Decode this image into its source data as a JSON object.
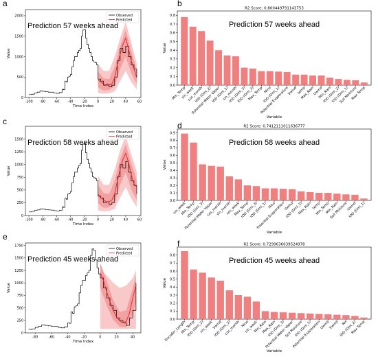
{
  "panels": {
    "a": "a",
    "b": "b",
    "c": "c",
    "d": "d",
    "e": "e",
    "f": "f"
  },
  "colors": {
    "observed": "#000000",
    "predicted": "#e8202a",
    "band_outer": "#f9c9c9",
    "band_inner": "#f2a0a0",
    "bar": "#f08080"
  },
  "chart_data": [
    {
      "id": "a",
      "type": "line",
      "title": "",
      "annotation": "Prediction 57 weeks ahead",
      "xlabel": "Time Index",
      "ylabel": "Value",
      "xlim": [
        -105,
        62
      ],
      "ylim": [
        0,
        2150
      ],
      "xticks": [
        "-100",
        "-80",
        "-60",
        "-40",
        "-20",
        "0",
        "20",
        "40",
        "60"
      ],
      "yticks": [
        "0",
        "500",
        "1000",
        "1500",
        "2000"
      ],
      "legend": [
        "Observed",
        "Predicted"
      ],
      "legend_position": "top-right",
      "observed": {
        "x": [
          -100,
          -96,
          -92,
          -88,
          -84,
          -80,
          -76,
          -72,
          -68,
          -64,
          -60,
          -56,
          -52,
          -50,
          -48,
          -46,
          -44,
          -42,
          -40,
          -38,
          -36,
          -34,
          -32,
          -30,
          -28,
          -26,
          -24,
          -22,
          -20,
          -18,
          -16,
          -14,
          -12,
          -10,
          -8,
          -6,
          -4,
          -2,
          0,
          4,
          8,
          12,
          16,
          20,
          24,
          28,
          32,
          36,
          40,
          44,
          48,
          52,
          56
        ],
        "y": [
          70,
          80,
          110,
          130,
          160,
          150,
          140,
          130,
          130,
          110,
          100,
          120,
          200,
          190,
          400,
          380,
          500,
          520,
          560,
          750,
          900,
          1000,
          1000,
          1100,
          1150,
          1200,
          1500,
          1650,
          1660,
          1450,
          1300,
          1200,
          1100,
          1000,
          900,
          870,
          850,
          800,
          450,
          400,
          300,
          320,
          260,
          300,
          500,
          900,
          1200,
          1100,
          1250,
          1000,
          800,
          700,
          500
        ]
      },
      "predicted": {
        "x": [
          0,
          4,
          8,
          12,
          16,
          20,
          24,
          28,
          32,
          36,
          40,
          44,
          48,
          52,
          56
        ],
        "y": [
          430,
          380,
          330,
          300,
          300,
          330,
          480,
          800,
          1050,
          1300,
          1450,
          1200,
          900,
          700,
          480
        ]
      },
      "band_inner": {
        "x": [
          0,
          8,
          16,
          24,
          32,
          40,
          48,
          56
        ],
        "lower": [
          250,
          170,
          180,
          280,
          700,
          1000,
          600,
          330
        ],
        "upper": [
          640,
          470,
          450,
          750,
          1250,
          1650,
          1150,
          650
        ]
      },
      "band_outer": {
        "x": [
          0,
          8,
          16,
          24,
          32,
          40,
          48,
          56
        ],
        "lower": [
          110,
          90,
          100,
          150,
          400,
          650,
          380,
          200
        ],
        "upper": [
          820,
          650,
          650,
          1000,
          1450,
          1850,
          1350,
          820
        ]
      }
    },
    {
      "id": "b",
      "type": "bar",
      "title": "R2 Score: 0.800449791143753",
      "annotation": "Prediction 57 weeks ahead",
      "xlabel": "Variable",
      "ylabel": "Value",
      "ylim": [
        0,
        0.85
      ],
      "yticks": [
        "0.0",
        "0.1",
        "0.2",
        "0.3",
        "0.4",
        "0.5",
        "0.6",
        "0.7",
        "0.8"
      ],
      "categories": [
        "Min_Temp",
        "sin_week",
        "cos_month",
        "IOD (Dmi_2)",
        "Potential Water Vapor",
        "IOD (Dmi_1)",
        "sin_month",
        "IOD (Dmi_3)",
        "IOD (Dmi_3)",
        "Max_Temp",
        "Nino",
        "IOD (Dmi_1)",
        "Potential Evaporation",
        "Vwind",
        "temp",
        "Max_Rain",
        "Uwind",
        "Min_Rain",
        "IOD (Dmi_2)",
        "IOD (Dmi_1)",
        "Soil Moisture",
        "Max Temp"
      ],
      "values": [
        0.78,
        0.67,
        0.62,
        0.51,
        0.4,
        0.34,
        0.33,
        0.2,
        0.19,
        0.16,
        0.16,
        0.155,
        0.15,
        0.12,
        0.12,
        0.11,
        0.11,
        0.085,
        0.07,
        0.06,
        0.055,
        0.03
      ]
    },
    {
      "id": "c",
      "type": "line",
      "title": "",
      "annotation": "Prediction 58 weeks ahead",
      "xlabel": "Time Index",
      "ylabel": "Value",
      "xlim": [
        -105,
        62
      ],
      "ylim": [
        0,
        1750
      ],
      "xticks": [
        "-100",
        "-80",
        "-60",
        "-40",
        "-20",
        "0",
        "20",
        "40",
        "60"
      ],
      "yticks": [
        "0",
        "250",
        "500",
        "750",
        "1000",
        "1250",
        "1500"
      ],
      "legend": [
        "Observed",
        "Predicted"
      ],
      "legend_position": "top-right",
      "observed": {
        "x": [
          -100,
          -96,
          -92,
          -88,
          -84,
          -80,
          -76,
          -72,
          -68,
          -64,
          -60,
          -56,
          -52,
          -50,
          -48,
          -46,
          -44,
          -42,
          -40,
          -38,
          -36,
          -34,
          -32,
          -30,
          -28,
          -26,
          -24,
          -22,
          -20,
          -18,
          -16,
          -14,
          -12,
          -10,
          -8,
          -6,
          -4,
          -2,
          0,
          4,
          8,
          12,
          16,
          20,
          24,
          28,
          32,
          36,
          40,
          44,
          48,
          52,
          56
        ],
        "y": [
          70,
          80,
          100,
          110,
          130,
          125,
          115,
          110,
          105,
          95,
          90,
          100,
          170,
          160,
          340,
          320,
          420,
          440,
          470,
          640,
          760,
          850,
          850,
          930,
          980,
          1020,
          1280,
          1400,
          1410,
          1230,
          1100,
          1020,
          930,
          850,
          760,
          740,
          720,
          680,
          380,
          340,
          250,
          270,
          220,
          250,
          420,
          760,
          1000,
          930,
          1060,
          850,
          680,
          590,
          420
        ]
      },
      "predicted": {
        "x": [
          0,
          4,
          8,
          12,
          16,
          20,
          24,
          28,
          32,
          36,
          40,
          44,
          48,
          52,
          56
        ],
        "y": [
          420,
          350,
          300,
          270,
          270,
          300,
          420,
          680,
          900,
          1100,
          1220,
          1050,
          800,
          620,
          560
        ]
      },
      "band_inner": {
        "x": [
          0,
          8,
          16,
          24,
          32,
          40,
          48,
          56
        ],
        "lower": [
          240,
          150,
          160,
          250,
          600,
          850,
          520,
          300
        ],
        "upper": [
          600,
          440,
          420,
          680,
          1100,
          1400,
          1020,
          700
        ]
      },
      "band_outer": {
        "x": [
          0,
          8,
          16,
          24,
          32,
          40,
          48,
          56
        ],
        "lower": [
          100,
          80,
          90,
          130,
          350,
          560,
          330,
          170
        ],
        "upper": [
          780,
          600,
          600,
          900,
          1280,
          1560,
          1200,
          860
        ]
      }
    },
    {
      "id": "d",
      "type": "bar",
      "title": "R2 Score: 0.7412111011636777",
      "annotation": "Prediction 58 weeks ahead",
      "xlabel": "Variable",
      "ylabel": "Value",
      "ylim": [
        0,
        0.95
      ],
      "yticks": [
        "0.0",
        "0.1",
        "0.2",
        "0.3",
        "0.4",
        "0.5",
        "0.6",
        "0.7",
        "0.8",
        "0.9"
      ],
      "categories": [
        "sin_week",
        "Min_Temp",
        "IOD (Dmi_3)",
        "Potential Water Vapor",
        "cos_month",
        "sin_month",
        "cos_week",
        "Max_Temp",
        "IOD (Dmi_3)",
        "IOD (Dmi_1)",
        "Nino",
        "Potential Evaporation",
        "Vwind",
        "IOD (Dmi_2)",
        "Max_Rain",
        "temp",
        "Min_Temp",
        "Min_Rain",
        "Soil Moisture",
        "Uwind",
        "IOD (Dmi_1)"
      ],
      "values": [
        0.89,
        0.77,
        0.48,
        0.46,
        0.45,
        0.32,
        0.28,
        0.2,
        0.19,
        0.16,
        0.16,
        0.155,
        0.15,
        0.12,
        0.11,
        0.1,
        0.1,
        0.09,
        0.08,
        0.075,
        0.025
      ]
    },
    {
      "id": "e",
      "type": "line",
      "title": "",
      "annotation": "Prediction 45 weeks ahead",
      "xlabel": "Time Index",
      "ylabel": "Value",
      "xlim": [
        -92,
        50
      ],
      "ylim": [
        0,
        1800
      ],
      "xticks": [
        "-80",
        "-60",
        "-40",
        "-20",
        "0",
        "20",
        "40"
      ],
      "yticks": [
        "0",
        "250",
        "500",
        "750",
        "1000",
        "1250",
        "1500",
        "1750"
      ],
      "legend": [
        "Observed",
        "Predicted"
      ],
      "legend_position": "top-right",
      "observed": {
        "x": [
          -88,
          -84,
          -80,
          -76,
          -72,
          -68,
          -64,
          -60,
          -56,
          -52,
          -48,
          -44,
          -40,
          -38,
          -36,
          -34,
          -32,
          -30,
          -28,
          -26,
          -24,
          -22,
          -20,
          -18,
          -16,
          -14,
          -12,
          -10,
          -8,
          -6,
          -4,
          -2,
          0,
          4,
          8,
          12,
          16,
          20,
          24,
          28,
          32,
          36,
          40,
          44
        ],
        "y": [
          70,
          80,
          110,
          130,
          160,
          150,
          140,
          130,
          130,
          110,
          100,
          120,
          200,
          190,
          420,
          390,
          520,
          540,
          580,
          800,
          950,
          1050,
          1050,
          1150,
          1200,
          1250,
          1550,
          1680,
          1650,
          1460,
          1300,
          1180,
          1100,
          900,
          700,
          550,
          450,
          300,
          250,
          200,
          150,
          300,
          450,
          1000
        ]
      },
      "predicted": {
        "x": [
          0,
          4,
          8,
          12,
          16,
          20,
          24,
          28,
          32,
          36,
          40,
          44
        ],
        "y": [
          1200,
          1050,
          820,
          620,
          450,
          320,
          240,
          200,
          230,
          400,
          700,
          950
        ]
      },
      "band_inner": {
        "x": [
          0,
          8,
          16,
          24,
          32,
          40,
          44
        ],
        "lower": [
          900,
          550,
          260,
          120,
          110,
          380,
          620
        ],
        "upper": [
          1400,
          1050,
          650,
          420,
          450,
          900,
          1150
        ]
      },
      "band_outer": {
        "x": [
          0,
          8,
          16,
          24,
          32,
          40,
          44
        ],
        "lower": [
          80,
          80,
          80,
          80,
          80,
          80,
          80
        ],
        "upper": [
          1250,
          1150,
          1000,
          900,
          950,
          1100,
          1250
        ]
      }
    },
    {
      "id": "f",
      "type": "bar",
      "title": "R2 Score: 0.7299636639524978",
      "annotation": "Prediction 45 weeks ahead",
      "xlabel": "Variable",
      "ylabel": "Value",
      "ylim": [
        0,
        0.9
      ],
      "yticks": [
        "0.0",
        "0.1",
        "0.2",
        "0.3",
        "0.4",
        "0.5",
        "0.6",
        "0.7",
        "0.8"
      ],
      "categories": [
        "Encoder_Length",
        "Min_Temp",
        "IOD (Dmi_2)",
        "sin_week",
        "Vwind",
        "IOD (Dmi_3)",
        "cos_month",
        "Nino",
        "sin_week",
        "Min_Rain",
        "Max_Rain",
        "IOD (Dmi_3)",
        "Potential Water Vapor",
        "Soil Moisture",
        "IOD (Dmi_1)",
        "Potential Evaporation",
        "Uwind",
        "Vwind",
        "RH",
        "IOD (Dmi_2)",
        "Max Temp"
      ],
      "values": [
        0.85,
        0.62,
        0.58,
        0.52,
        0.48,
        0.36,
        0.3,
        0.28,
        0.22,
        0.1,
        0.09,
        0.085,
        0.08,
        0.075,
        0.07,
        0.065,
        0.06,
        0.055,
        0.05,
        0.04,
        0.02
      ]
    }
  ]
}
